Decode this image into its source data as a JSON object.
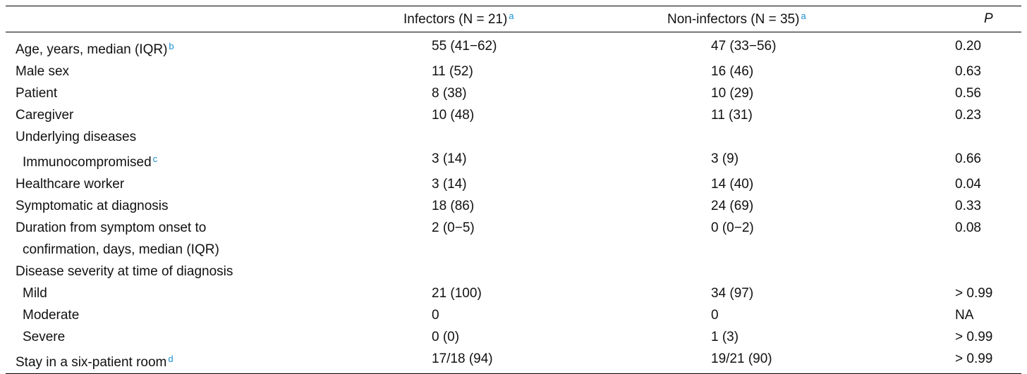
{
  "table": {
    "header": [
      {
        "text": ""
      },
      {
        "text": "Infectors (N = 21)",
        "note": "a"
      },
      {
        "text": "Non-infectors (N = 35)",
        "note": "a"
      },
      {
        "text": "P"
      }
    ],
    "rows": [
      {
        "label": "Age, years, median (IQR)",
        "note": "b",
        "cells": [
          "55 (41−62)",
          "47 (33−56)",
          "0.20"
        ]
      },
      {
        "label": "Male sex",
        "cells": [
          "11 (52)",
          "16 (46)",
          "0.63"
        ]
      },
      {
        "label": "Patient",
        "cells": [
          "8 (38)",
          "10 (29)",
          "0.56"
        ]
      },
      {
        "label": "Caregiver",
        "cells": [
          "10 (48)",
          "11 (31)",
          "0.23"
        ]
      },
      {
        "label": "Underlying diseases",
        "children": [
          {
            "label": "Immunocompromised",
            "note": "c",
            "cells": [
              "3 (14)",
              "3 (9)",
              "0.66"
            ]
          }
        ]
      },
      {
        "label": "Healthcare worker",
        "cells": [
          "3 (14)",
          "14 (40)",
          "0.04"
        ]
      },
      {
        "label": "Symptomatic at diagnosis",
        "cells": [
          "18 (86)",
          "24 (69)",
          "0.33"
        ]
      },
      {
        "label": "Duration from symptom onset to confirmation, days, median (IQR)",
        "cells": [
          "2 (0−5)",
          "0 (0−2)",
          "0.08"
        ]
      },
      {
        "label": "Disease severity at time of diagnosis",
        "children": [
          {
            "label": "Mild",
            "cells": [
              "21 (100)",
              "34 (97)",
              "> 0.99"
            ]
          },
          {
            "label": "Moderate",
            "cells": [
              "0",
              "0",
              "NA"
            ]
          },
          {
            "label": "Severe",
            "cells": [
              "0 (0)",
              "1 (3)",
              "> 0.99"
            ]
          }
        ]
      },
      {
        "label": "Stay in a six-patient room",
        "note": "d",
        "cells": [
          "17/18 (94)",
          "19/21 (90)",
          "> 0.99"
        ]
      }
    ]
  }
}
